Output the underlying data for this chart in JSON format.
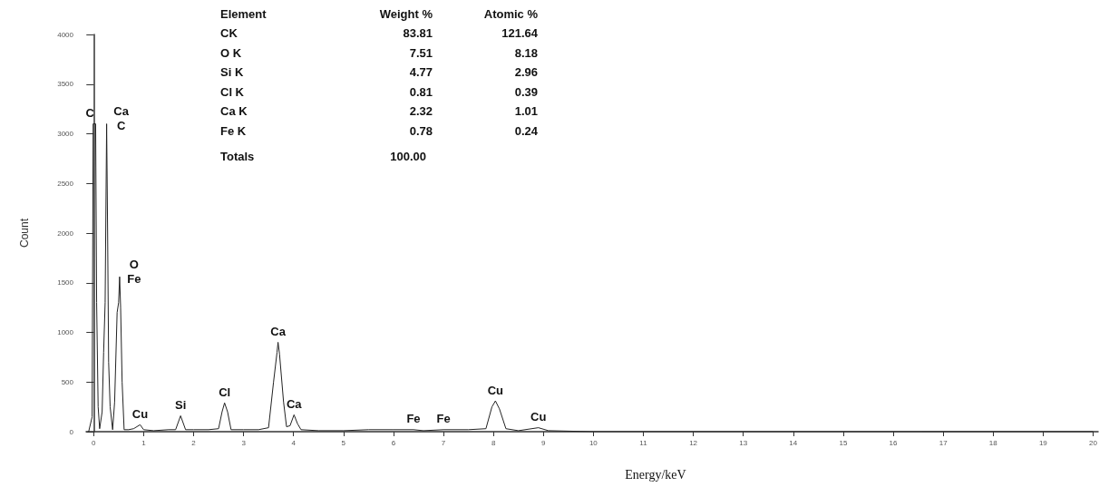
{
  "chart_data": {
    "type": "line",
    "xlabel": "Energy/keV",
    "ylabel": "Count",
    "xlim": [
      -0.15,
      20.1
    ],
    "xticks": [
      0,
      1,
      2,
      3,
      4,
      5,
      6,
      7,
      8,
      9,
      10,
      11,
      12,
      13,
      14,
      15,
      16,
      17,
      18,
      19,
      20
    ],
    "ylim": [
      0,
      4000
    ],
    "yticks": [
      0,
      500,
      1000,
      1500,
      2000,
      2500,
      3000,
      3500,
      4000
    ],
    "marker": "none",
    "line_style": "solid",
    "series": [
      {
        "color": "#222222",
        "x": [
          -0.1,
          -0.03,
          -0.01,
          0.04,
          0.06,
          0.09,
          0.12,
          0.17,
          0.2,
          0.23,
          0.26,
          0.28,
          0.3,
          0.33,
          0.38,
          0.42,
          0.47,
          0.5,
          0.52,
          0.54,
          0.57,
          0.61,
          0.7,
          0.8,
          0.93,
          1.0,
          1.2,
          1.5,
          1.64,
          1.74,
          1.84,
          2.0,
          2.3,
          2.5,
          2.57,
          2.62,
          2.68,
          2.75,
          3.0,
          3.3,
          3.5,
          3.6,
          3.67,
          3.69,
          3.72,
          3.8,
          3.86,
          3.93,
          4.01,
          4.08,
          4.15,
          4.5,
          5.0,
          5.5,
          6.0,
          6.4,
          6.6,
          7.0,
          7.5,
          7.85,
          7.97,
          8.04,
          8.12,
          8.25,
          8.5,
          8.9,
          9.1,
          10,
          12,
          15,
          20
        ],
        "values": [
          0,
          150,
          3100,
          3100,
          1300,
          250,
          30,
          200,
          800,
          1300,
          3100,
          2000,
          700,
          250,
          20,
          300,
          1200,
          1300,
          1560,
          1250,
          500,
          20,
          20,
          30,
          70,
          20,
          10,
          20,
          20,
          160,
          20,
          20,
          20,
          30,
          200,
          290,
          200,
          20,
          20,
          20,
          40,
          500,
          800,
          900,
          780,
          300,
          50,
          60,
          170,
          80,
          20,
          10,
          10,
          20,
          20,
          20,
          10,
          20,
          20,
          30,
          250,
          310,
          230,
          30,
          10,
          40,
          10,
          0,
          0,
          0,
          0
        ]
      }
    ],
    "annotations": [
      "Element",
      "Weight %",
      "Atomic %",
      "CK",
      "83.81",
      "121.64",
      "O K",
      "7.51",
      "8.18",
      "Si K",
      "4.77",
      "2.96",
      "Cl K",
      "0.81",
      "0.39",
      "Ca K",
      "2.32",
      "1.01",
      "Fe K",
      "0.78",
      "0.24",
      "Totals",
      "100.00",
      {
        "text": "C",
        "x": 0.0,
        "y": 3100
      },
      {
        "text": "Ca",
        "x": 0.26,
        "y": 3100
      },
      {
        "text": "C",
        "x": 0.26,
        "y": 3100
      },
      {
        "text": "O",
        "x": 0.52,
        "y": 1560
      },
      {
        "text": "Fe",
        "x": 0.52,
        "y": 1560
      },
      {
        "text": "Cu",
        "x": 0.93,
        "y": 70
      },
      {
        "text": "Si",
        "x": 1.74,
        "y": 160
      },
      {
        "text": "Cl",
        "x": 2.62,
        "y": 290
      },
      {
        "text": "Ca",
        "x": 3.69,
        "y": 900
      },
      {
        "text": "Ca",
        "x": 4.01,
        "y": 170
      },
      {
        "text": "Fe",
        "x": 6.4,
        "y": 20
      },
      {
        "text": "Fe",
        "x": 7.0,
        "y": 20
      },
      {
        "text": "Cu",
        "x": 8.04,
        "y": 310
      },
      {
        "text": "Cu",
        "x": 8.9,
        "y": 40
      }
    ]
  }
}
